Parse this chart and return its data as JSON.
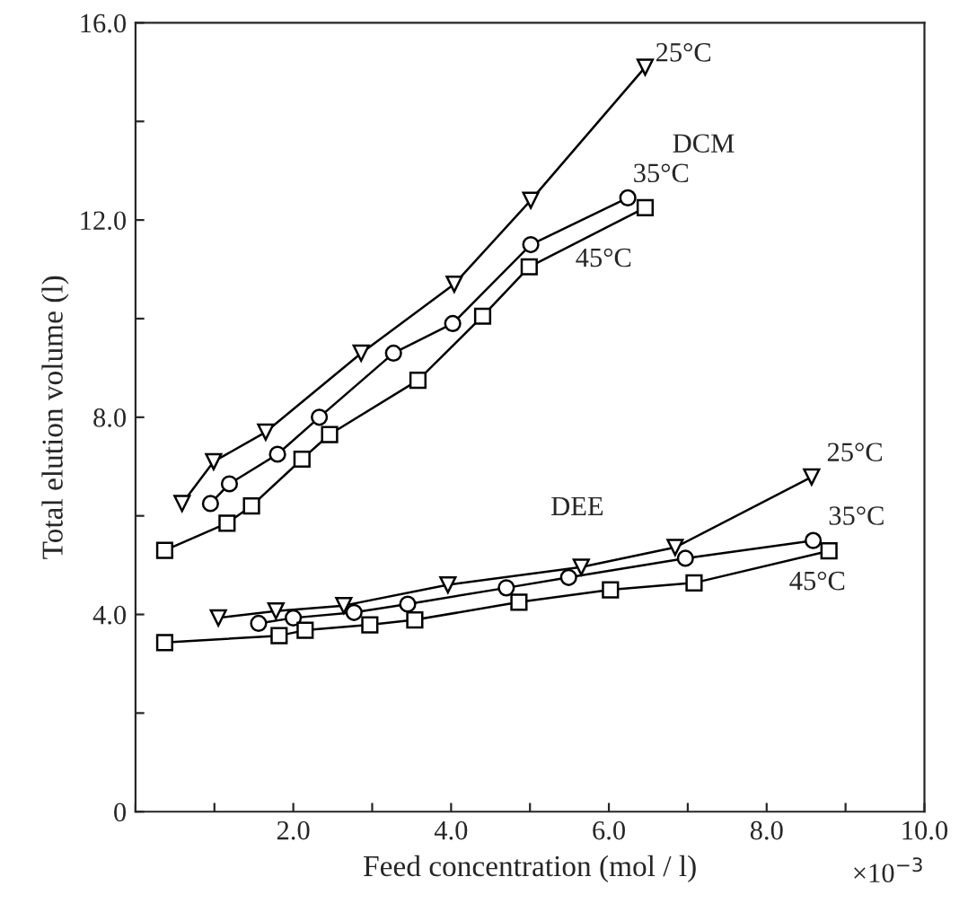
{
  "chart_data": {
    "type": "line",
    "xlabel": "Feed concentration (mol / l)",
    "ylabel": "Total elution volume (l)",
    "xlim": [
      0,
      10
    ],
    "ylim": [
      0,
      16
    ],
    "xticks": [
      {
        "value": 0,
        "label": null
      },
      {
        "value": 1,
        "label": null
      },
      {
        "value": 2,
        "label": "2.0"
      },
      {
        "value": 3,
        "label": null
      },
      {
        "value": 4,
        "label": "4.0"
      },
      {
        "value": 5,
        "label": null
      },
      {
        "value": 6,
        "label": "6.0"
      },
      {
        "value": 7,
        "label": null
      },
      {
        "value": 8,
        "label": "8.0"
      },
      {
        "value": 9,
        "label": null
      },
      {
        "value": 10,
        "label": "10.0"
      }
    ],
    "yticks": [
      0,
      {
        "value": 2,
        "label": null
      },
      {
        "value": 4,
        "label": "4.0"
      },
      {
        "value": 6,
        "label": null
      },
      {
        "value": 8,
        "label": "8.0"
      },
      {
        "value": 10,
        "label": null
      },
      {
        "value": 12,
        "label": "12.0"
      },
      {
        "value": 14,
        "label": null
      },
      {
        "value": 16,
        "label": "16.0"
      }
    ],
    "grid": false,
    "legend": false,
    "line_style": "solid",
    "annotations": [
      "DCM",
      "DEE",
      "×10$^{−3}$"
    ],
    "series": [
      {
        "name": "25°C",
        "color": "#000000",
        "marker": "triangle",
        "x": [
          0.59,
          0.99,
          1.65,
          2.86,
          4.04,
          5.01,
          6.46
        ],
        "values": [
          6.25,
          7.1,
          7.7,
          9.3,
          10.7,
          12.4,
          15.1
        ]
      },
      {
        "name": "35°C",
        "color": "#000000",
        "marker": "circle",
        "x": [
          0.95,
          1.19,
          1.8,
          2.33,
          3.27,
          4.02,
          5.01,
          6.24
        ],
        "values": [
          6.25,
          6.65,
          7.25,
          8.0,
          9.3,
          9.9,
          11.5,
          12.45
        ]
      },
      {
        "name": "45°C",
        "color": "#000000",
        "marker": "square",
        "x": [
          0.37,
          1.16,
          1.47,
          2.11,
          2.46,
          3.58,
          4.4,
          4.99,
          6.46
        ],
        "values": [
          5.3,
          5.85,
          6.2,
          7.15,
          7.65,
          8.75,
          10.05,
          11.05,
          12.25
        ]
      },
      {
        "name": "25°C",
        "color": "#000000",
        "marker": "triangle",
        "x": [
          1.05,
          1.78,
          2.64,
          3.96,
          5.65,
          6.84,
          8.57
        ],
        "values": [
          3.93,
          4.07,
          4.18,
          4.6,
          4.96,
          5.36,
          6.79
        ]
      },
      {
        "name": "35°C",
        "color": "#000000",
        "marker": "circle",
        "x": [
          1.56,
          2.0,
          2.77,
          3.45,
          4.7,
          5.49,
          6.97,
          8.59
        ],
        "values": [
          3.82,
          3.93,
          4.04,
          4.21,
          4.54,
          4.75,
          5.14,
          5.5
        ]
      },
      {
        "name": "45°C",
        "color": "#000000",
        "marker": "square",
        "x": [
          0.37,
          1.82,
          2.15,
          2.97,
          3.54,
          4.86,
          6.02,
          7.08,
          8.79
        ],
        "values": [
          3.43,
          3.57,
          3.68,
          3.79,
          3.89,
          4.25,
          4.5,
          4.64,
          5.29
        ]
      }
    ]
  }
}
